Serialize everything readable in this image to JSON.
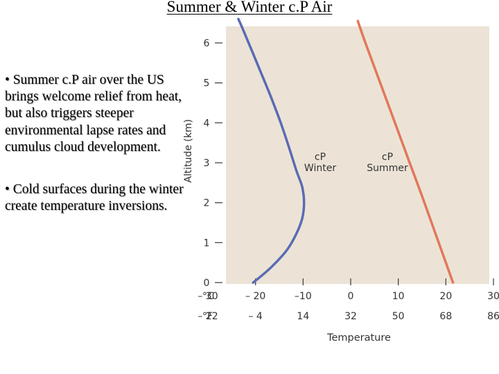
{
  "slide": {
    "title": "Summer & Winter c.P Air",
    "bullets": [
      "• Summer c.P air over the US brings welcome relief from heat, but also triggers steeper environmental lapse rates and cumulus cloud development.",
      "• Cold surfaces during the winter create temperature inversions."
    ]
  },
  "chart_data": {
    "type": "line",
    "ylabel": "Altitude (km)",
    "xlabel": "Temperature",
    "xlim": [
      -30,
      30
    ],
    "ylim": [
      0,
      6.5
    ],
    "y_ticks": [
      "0",
      "1",
      "2",
      "3",
      "4",
      "5",
      "6"
    ],
    "x_unit_c": "°C",
    "x_unit_f": "°F",
    "x_ticks_c": [
      "– 30",
      "– 20",
      "–10",
      "0",
      "10",
      "20",
      "30"
    ],
    "x_ticks_f": [
      "– 22",
      "– 4",
      "14",
      "32",
      "50",
      "68",
      "86"
    ],
    "series": [
      {
        "name": "cP Winter",
        "name_lines": [
          "cP",
          "Winter"
        ],
        "color": "#5a6bb3",
        "points": [
          {
            "x": -20.5,
            "y": 0
          },
          {
            "x": -17,
            "y": 0.35
          },
          {
            "x": -13.5,
            "y": 0.8
          },
          {
            "x": -11.5,
            "y": 1.2
          },
          {
            "x": -10.2,
            "y": 1.6
          },
          {
            "x": -9.8,
            "y": 2.0
          },
          {
            "x": -10.2,
            "y": 2.4
          },
          {
            "x": -11.4,
            "y": 2.8
          },
          {
            "x": -13,
            "y": 3.4
          },
          {
            "x": -14.7,
            "y": 4.0
          },
          {
            "x": -16.6,
            "y": 4.6
          },
          {
            "x": -19,
            "y": 5.3
          },
          {
            "x": -22.5,
            "y": 6.3
          },
          {
            "x": -23.6,
            "y": 6.6
          }
        ]
      },
      {
        "name": "cP Summer",
        "name_lines": [
          "cP",
          "Summer"
        ],
        "color": "#e2775a",
        "points": [
          {
            "x": 21.5,
            "y": 0
          },
          {
            "x": 18.5,
            "y": 1.0
          },
          {
            "x": 15.5,
            "y": 2.0
          },
          {
            "x": 12.4,
            "y": 3.0
          },
          {
            "x": 9.3,
            "y": 4.0
          },
          {
            "x": 6.2,
            "y": 5.0
          },
          {
            "x": 3.1,
            "y": 6.0
          },
          {
            "x": 1.5,
            "y": 6.55
          }
        ]
      }
    ]
  }
}
